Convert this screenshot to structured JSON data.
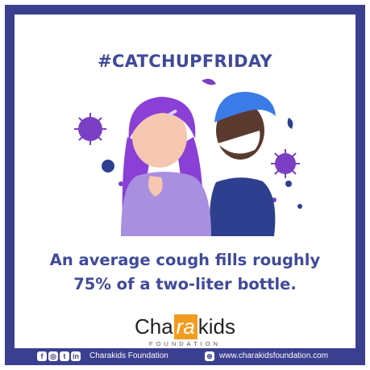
{
  "post": {
    "hashtag": "#CATCHUPFRIDAY",
    "headline_line1": "An average cough fills roughly",
    "headline_line2": "75% of a two-liter bottle."
  },
  "logo": {
    "part1": "Cha",
    "highlight": "ra",
    "part2": "kids",
    "subtitle": "FOUNDATION"
  },
  "footer": {
    "social_icons": [
      "facebook-icon",
      "instagram-icon",
      "twitter-icon",
      "linkedin-icon"
    ],
    "org_name": "Charakids Foundation",
    "website": "www.charakidsfoundation.com"
  },
  "colors": {
    "brand_blue": "#3a3f8f",
    "text_blue": "#3f4a9a",
    "logo_orange": "#f29c1f",
    "virus_purple": "#7b3fc4"
  }
}
